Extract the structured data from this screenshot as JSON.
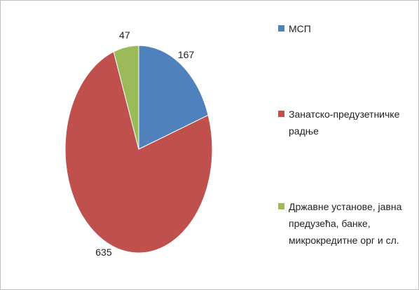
{
  "chart_data": {
    "type": "pie",
    "categories": [
      "МСП",
      "Занатско-предузетничке радње",
      "Државне установе, јавна предузећа, банке, микрокредитне орг и сл."
    ],
    "values": [
      167,
      635,
      47
    ],
    "colors": [
      "#4f81bd",
      "#c0504d",
      "#9bbb59"
    ],
    "legend": "right"
  }
}
